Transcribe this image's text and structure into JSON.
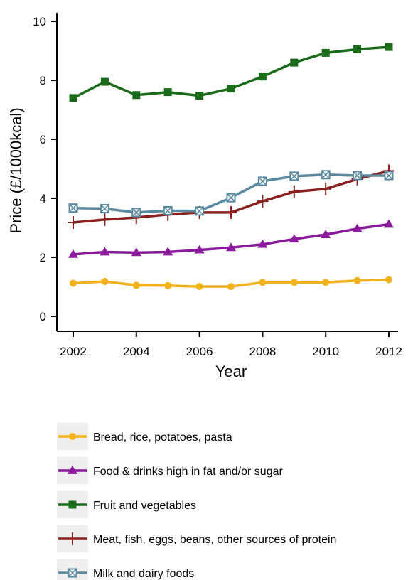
{
  "chart_data": {
    "type": "line",
    "title": "",
    "xlabel": "Year",
    "ylabel": "Price (£/1000kcal)",
    "x": [
      2002,
      2003,
      2004,
      2005,
      2006,
      2007,
      2008,
      2009,
      2010,
      2011,
      2012
    ],
    "xticks": [
      2002,
      2004,
      2006,
      2008,
      2010,
      2012
    ],
    "yticks": [
      0,
      2,
      4,
      6,
      8,
      10
    ],
    "xlim": [
      2002,
      2012
    ],
    "ylim": [
      0,
      10
    ],
    "grid": false,
    "legend_placement": "bottom",
    "series": [
      {
        "name": "Bread, rice, potatoes, pasta",
        "color": "#f2b21c",
        "marker": "circle",
        "values": [
          1.12,
          1.18,
          1.05,
          1.04,
          1.01,
          1.01,
          1.15,
          1.15,
          1.15,
          1.21,
          1.24
        ]
      },
      {
        "name": "Food & drinks high in fat and/or sugar",
        "color": "#8b1a9c",
        "marker": "triangle",
        "values": [
          2.1,
          2.18,
          2.16,
          2.18,
          2.25,
          2.33,
          2.44,
          2.62,
          2.77,
          2.97,
          3.12
        ]
      },
      {
        "name": "Fruit and vegetables",
        "color": "#1a6b1a",
        "marker": "square",
        "values": [
          7.4,
          7.95,
          7.5,
          7.6,
          7.48,
          7.72,
          8.13,
          8.6,
          8.93,
          9.05,
          9.13
        ]
      },
      {
        "name": "Meat, fish, eggs, beans, other sources of protein",
        "color": "#8b2020",
        "marker": "plus",
        "values": [
          3.18,
          3.28,
          3.35,
          3.45,
          3.52,
          3.52,
          3.9,
          4.22,
          4.32,
          4.65,
          4.93
        ]
      },
      {
        "name": "Milk and dairy foods",
        "color": "#5a8aa0",
        "marker": "boxx",
        "values": [
          3.67,
          3.65,
          3.52,
          3.58,
          3.57,
          4.02,
          4.58,
          4.75,
          4.8,
          4.77,
          4.77
        ]
      }
    ]
  }
}
